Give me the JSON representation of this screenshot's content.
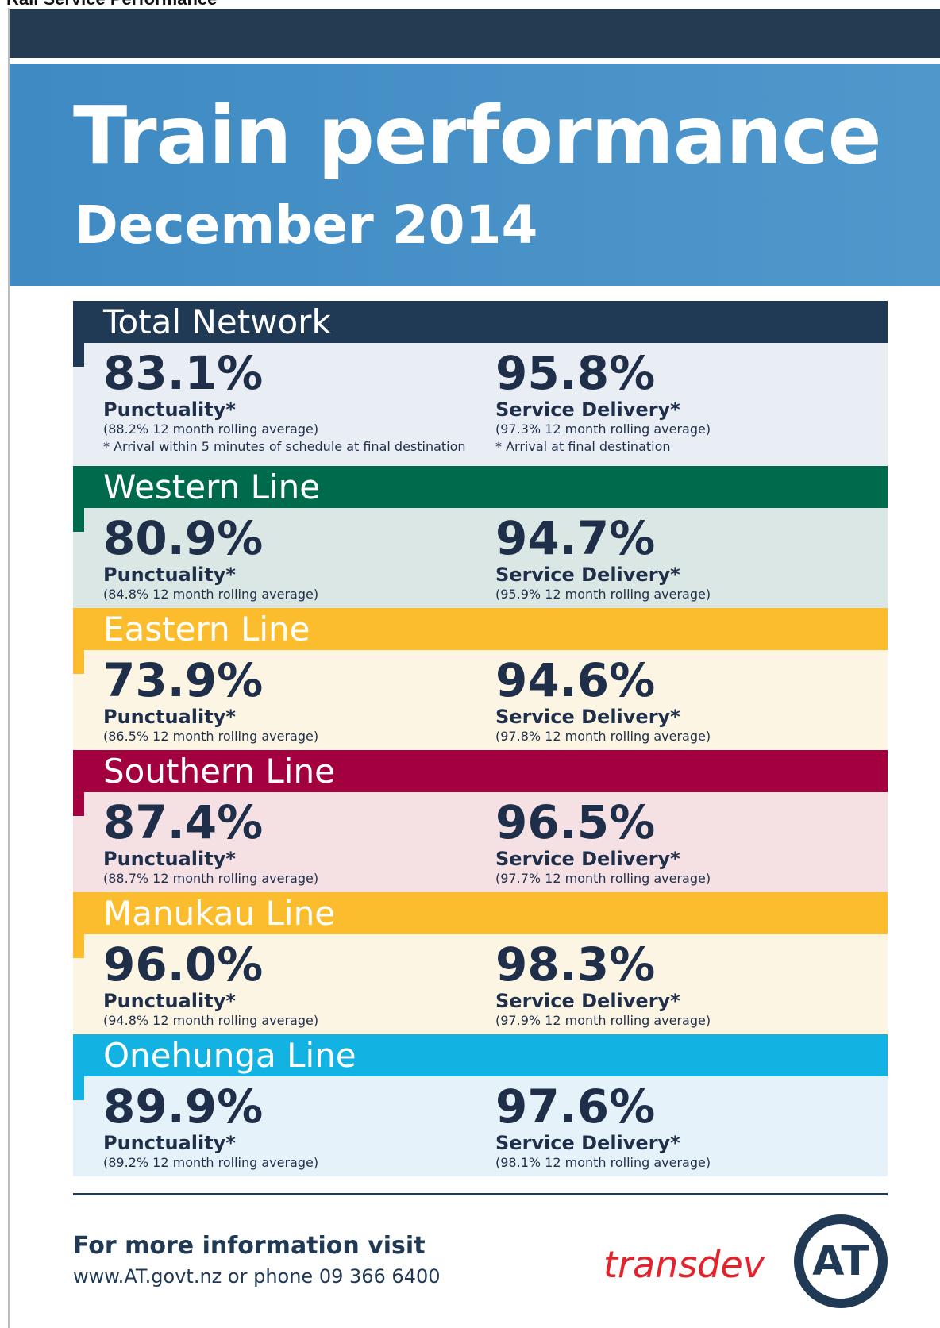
{
  "page_title": "Rail Service Performance",
  "header": {
    "title": "Train performance",
    "subtitle": "December 2014"
  },
  "sections": [
    {
      "name": "Total Network",
      "header_color": "#203a55",
      "body_color": "#e9eef5",
      "punctuality": {
        "value": "83.1%",
        "label": "Punctuality*",
        "rolling": "(88.2% 12 month rolling average)",
        "note": "* Arrival within 5 minutes of schedule at final destination"
      },
      "service_delivery": {
        "value": "95.8%",
        "label": "Service Delivery*",
        "rolling": "(97.3% 12 month rolling average)",
        "note": "* Arrival at final destination"
      }
    },
    {
      "name": "Western Line",
      "header_color": "#006a4d",
      "body_color": "#dbe7e5",
      "punctuality": {
        "value": "80.9%",
        "label": "Punctuality*",
        "rolling": "(84.8% 12 month rolling average)"
      },
      "service_delivery": {
        "value": "94.7%",
        "label": "Service Delivery*",
        "rolling": "(95.9% 12 month rolling average)"
      }
    },
    {
      "name": "Eastern Line",
      "header_color": "#fbbd2d",
      "body_color": "#fdf5e4",
      "punctuality": {
        "value": "73.9%",
        "label": "Punctuality*",
        "rolling": "(86.5% 12 month rolling average)"
      },
      "service_delivery": {
        "value": "94.6%",
        "label": "Service Delivery*",
        "rolling": "(97.8% 12 month rolling average)"
      }
    },
    {
      "name": "Southern Line",
      "header_color": "#a3003f",
      "body_color": "#f5e0e4",
      "punctuality": {
        "value": "87.4%",
        "label": "Punctuality*",
        "rolling": "(88.7% 12 month rolling average)"
      },
      "service_delivery": {
        "value": "96.5%",
        "label": "Service Delivery*",
        "rolling": "(97.7% 12 month rolling average)"
      }
    },
    {
      "name": "Manukau Line",
      "header_color": "#fbbd2d",
      "body_color": "#fdf5e4",
      "punctuality": {
        "value": "96.0%",
        "label": "Punctuality*",
        "rolling": "(94.8% 12 month rolling average)"
      },
      "service_delivery": {
        "value": "98.3%",
        "label": "Service Delivery*",
        "rolling": "(97.9% 12 month rolling average)"
      }
    },
    {
      "name": "Onehunga Line",
      "header_color": "#12b3e3",
      "body_color": "#e5f2f9",
      "punctuality": {
        "value": "89.9%",
        "label": "Punctuality*",
        "rolling": "(89.2% 12 month rolling average)"
      },
      "service_delivery": {
        "value": "97.6%",
        "label": "Service Delivery*",
        "rolling": "(98.1% 12 month rolling average)"
      }
    }
  ],
  "footer": {
    "heading": "For more information visit",
    "contact": "www.AT.govt.nz or phone 09 366 6400",
    "partner_logo": "transdev",
    "at_logo": "AT"
  }
}
